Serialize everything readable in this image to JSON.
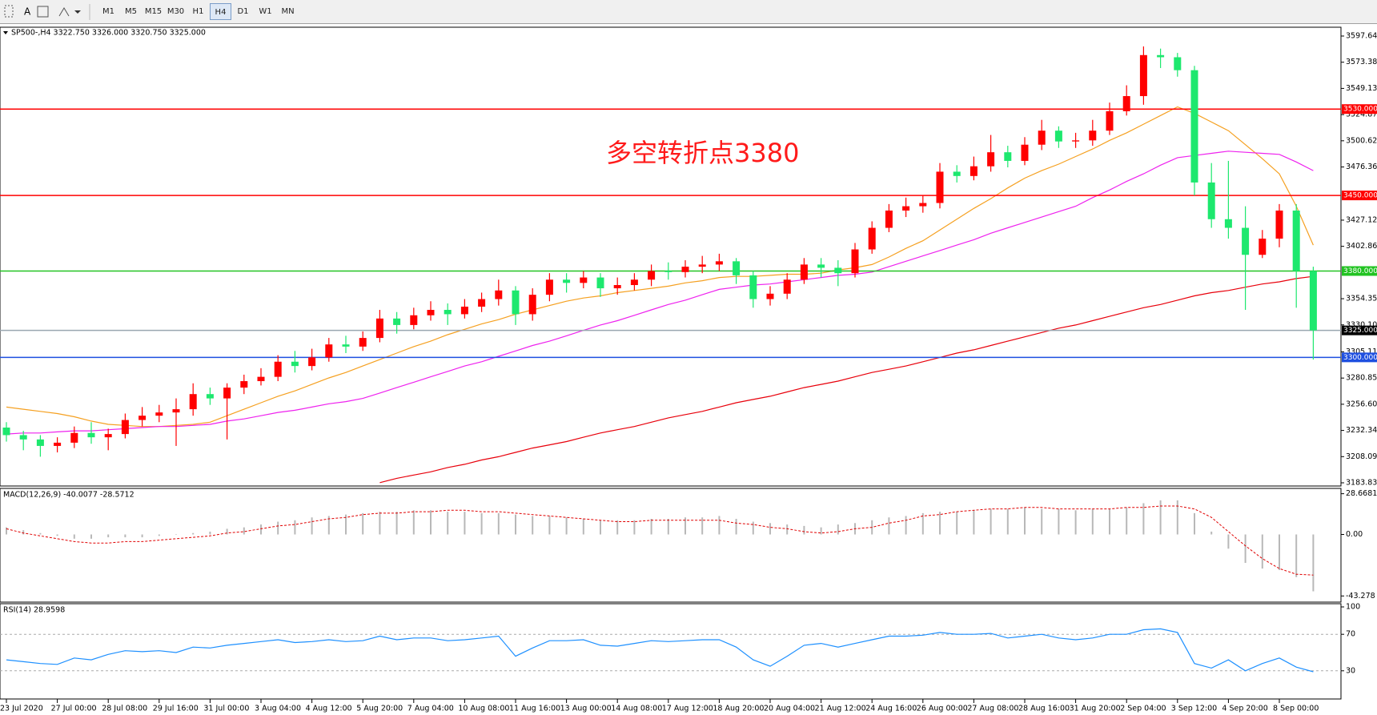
{
  "toolbar": {
    "font_tool": "A",
    "timeframes": [
      "M1",
      "M5",
      "M15",
      "M30",
      "H1",
      "H4",
      "D1",
      "W1",
      "MN"
    ]
  },
  "chart_data": [
    {
      "type": "candlestick",
      "title": "SP500-,H4  3322.750 3326.000 3320.750 3325.000",
      "annotation": "多空转折点3380",
      "up_color": "#ff0000",
      "down_color": "#1de86e",
      "categories": [
        "23 Jul 2020",
        null,
        null,
        "27 Jul 00:00",
        null,
        null,
        "28 Jul 08:00",
        null,
        null,
        "29 Jul 16:00",
        null,
        null,
        "31 Jul 00:00",
        null,
        null,
        "3 Aug 04:00",
        null,
        null,
        "4 Aug 12:00",
        null,
        null,
        "5 Aug 20:00",
        null,
        null,
        "7 Aug 04:00",
        null,
        null,
        "10 Aug 08:00",
        null,
        null,
        "11 Aug 16:00",
        null,
        null,
        "13 Aug 00:00",
        null,
        null,
        "14 Aug 08:00",
        null,
        null,
        "17 Aug 12:00",
        null,
        null,
        "18 Aug 20:00",
        null,
        null,
        "20 Aug 04:00",
        null,
        null,
        "21 Aug 12:00",
        null,
        null,
        "24 Aug 16:00",
        null,
        null,
        "26 Aug 00:00",
        null,
        null,
        "27 Aug 08:00",
        null,
        null,
        "28 Aug 16:00",
        null,
        null,
        "31 Aug 20:00",
        null,
        null,
        "2 Sep 04:00",
        null,
        null,
        "3 Sep 12:00",
        null,
        null,
        "4 Sep 20:00",
        null,
        null,
        "8 Sep 00:00",
        null,
        null
      ],
      "open": [
        3235,
        3228,
        3224,
        3218,
        3221,
        3230,
        3226,
        3229,
        3242,
        3246,
        3249,
        3252,
        3266,
        3262,
        3272,
        3278,
        3282,
        3296,
        3292,
        3300,
        3312,
        3310,
        3318,
        3336,
        3330,
        3339,
        3344,
        3340,
        3347,
        3354,
        3362,
        3340,
        3358,
        3372,
        3369,
        3374,
        3364,
        3367,
        3372,
        3380,
        3379,
        3384,
        3386,
        3389,
        3376,
        3354,
        3359,
        3372,
        3386,
        3383,
        3378,
        3400,
        3420,
        3436,
        3440,
        3443,
        3472,
        3468,
        3477,
        3490,
        3482,
        3497,
        3510,
        3500,
        3501,
        3510,
        3528,
        3542,
        3580,
        3578,
        3566,
        3462,
        3428,
        3420,
        3395,
        3410,
        3436,
        3380
      ],
      "high": [
        3240,
        3232,
        3228,
        3226,
        3236,
        3240,
        3234,
        3248,
        3254,
        3256,
        3262,
        3276,
        3272,
        3276,
        3284,
        3290,
        3302,
        3306,
        3308,
        3318,
        3320,
        3324,
        3344,
        3342,
        3346,
        3352,
        3350,
        3354,
        3360,
        3372,
        3366,
        3364,
        3378,
        3378,
        3380,
        3378,
        3374,
        3378,
        3386,
        3388,
        3390,
        3394,
        3396,
        3392,
        3380,
        3366,
        3378,
        3392,
        3392,
        3390,
        3406,
        3426,
        3442,
        3448,
        3450,
        3480,
        3478,
        3486,
        3506,
        3496,
        3504,
        3520,
        3514,
        3508,
        3520,
        3536,
        3552,
        3588,
        3586,
        3582,
        3570,
        3480,
        3482,
        3440,
        3418,
        3442,
        3442,
        3384
      ],
      "low": [
        3222,
        3214,
        3208,
        3212,
        3216,
        3220,
        3214,
        3225,
        3236,
        3240,
        3218,
        3246,
        3256,
        3224,
        3266,
        3274,
        3278,
        3286,
        3288,
        3296,
        3304,
        3306,
        3314,
        3322,
        3326,
        3334,
        3330,
        3336,
        3342,
        3348,
        3330,
        3334,
        3352,
        3360,
        3364,
        3356,
        3358,
        3362,
        3366,
        3372,
        3374,
        3378,
        3380,
        3368,
        3346,
        3348,
        3354,
        3368,
        3374,
        3366,
        3374,
        3396,
        3416,
        3430,
        3434,
        3438,
        3462,
        3464,
        3472,
        3476,
        3478,
        3492,
        3494,
        3494,
        3496,
        3506,
        3524,
        3534,
        3568,
        3560,
        3450,
        3420,
        3410,
        3344,
        3392,
        3402,
        3346,
        3298
      ],
      "close": [
        3228,
        3224,
        3218,
        3221,
        3230,
        3226,
        3229,
        3242,
        3246,
        3249,
        3252,
        3266,
        3262,
        3272,
        3278,
        3282,
        3296,
        3292,
        3300,
        3312,
        3310,
        3318,
        3336,
        3330,
        3339,
        3344,
        3340,
        3347,
        3354,
        3362,
        3340,
        3358,
        3372,
        3369,
        3374,
        3364,
        3367,
        3372,
        3380,
        3379,
        3384,
        3386,
        3389,
        3376,
        3354,
        3359,
        3372,
        3386,
        3383,
        3378,
        3400,
        3420,
        3436,
        3440,
        3443,
        3472,
        3468,
        3477,
        3490,
        3482,
        3497,
        3510,
        3500,
        3501,
        3510,
        3528,
        3542,
        3580,
        3578,
        3566,
        3462,
        3428,
        3420,
        3395,
        3410,
        3436,
        3380,
        3325
      ],
      "overlays": [
        {
          "color": "#f5a020",
          "values": [
            3254,
            3252,
            3250,
            3248,
            3245,
            3241,
            3238,
            3237,
            3236,
            3236,
            3237,
            3238,
            3240,
            3246,
            3252,
            3258,
            3264,
            3269,
            3275,
            3281,
            3286,
            3292,
            3298,
            3304,
            3310,
            3315,
            3321,
            3326,
            3331,
            3335,
            3340,
            3344,
            3348,
            3352,
            3355,
            3357,
            3360,
            3362,
            3364,
            3366,
            3369,
            3371,
            3374,
            3375,
            3375,
            3376,
            3377,
            3377,
            3378,
            3381,
            3383,
            3386,
            3393,
            3401,
            3408,
            3418,
            3428,
            3438,
            3447,
            3457,
            3466,
            3473,
            3479,
            3486,
            3493,
            3501,
            3508,
            3516,
            3524,
            3532,
            3526,
            3518,
            3510,
            3497,
            3484,
            3470,
            3440,
            3404
          ]
        },
        {
          "color": "#ee22ee",
          "values": [
            3229,
            3230,
            3230,
            3231,
            3232,
            3232,
            3233,
            3234,
            3235,
            3236,
            3236,
            3237,
            3238,
            3241,
            3243,
            3246,
            3249,
            3251,
            3254,
            3257,
            3259,
            3262,
            3267,
            3272,
            3277,
            3282,
            3287,
            3292,
            3296,
            3301,
            3306,
            3311,
            3315,
            3320,
            3325,
            3330,
            3334,
            3339,
            3344,
            3349,
            3353,
            3358,
            3363,
            3365,
            3367,
            3368,
            3370,
            3372,
            3374,
            3376,
            3377,
            3379,
            3384,
            3389,
            3394,
            3399,
            3404,
            3409,
            3415,
            3420,
            3425,
            3430,
            3435,
            3440,
            3448,
            3455,
            3463,
            3470,
            3478,
            3485,
            3487,
            3489,
            3491,
            3490,
            3489,
            3488,
            3481,
            3473
          ]
        },
        {
          "color": "#e8000b",
          "values": [
            null,
            null,
            null,
            null,
            null,
            null,
            null,
            null,
            null,
            null,
            null,
            null,
            null,
            null,
            null,
            null,
            null,
            null,
            null,
            null,
            null,
            null,
            3184,
            3188,
            3191,
            3194,
            3198,
            3201,
            3205,
            3208,
            3212,
            3216,
            3219,
            3222,
            3226,
            3230,
            3233,
            3236,
            3240,
            3244,
            3247,
            3250,
            3254,
            3258,
            3261,
            3264,
            3268,
            3272,
            3275,
            3278,
            3282,
            3286,
            3289,
            3292,
            3296,
            3300,
            3304,
            3307,
            3311,
            3315,
            3319,
            3323,
            3327,
            3330,
            3334,
            3338,
            3342,
            3346,
            3349,
            3353,
            3357,
            3360,
            3362,
            3365,
            3368,
            3370,
            3373,
            3375
          ]
        }
      ],
      "levels": [
        {
          "value": 3530,
          "label": "3530.000",
          "color": "#ff0000"
        },
        {
          "value": 3450,
          "label": "3450.000",
          "color": "#ff0000"
        },
        {
          "value": 3380,
          "label": "3380.000",
          "color": "#22c322"
        },
        {
          "value": 3325,
          "label": "3325.000",
          "color": "#9aa6b0"
        },
        {
          "value": 3300,
          "label": "3300.000",
          "color": "#1e4fe0"
        }
      ],
      "ylim": [
        3180.87,
        3605.8
      ],
      "yticks": [
        {
          "value": 3597.64,
          "label": "3597.640"
        },
        {
          "value": 3573.385,
          "label": "3573.385"
        },
        {
          "value": 3549.13,
          "label": "3549.130"
        },
        {
          "value": 3524.875,
          "label": "3524.875"
        },
        {
          "value": 3500.62,
          "label": "3500.620"
        },
        {
          "value": 3476.365,
          "label": "3476.365"
        },
        {
          "value": 3427.12,
          "label": "3427.120"
        },
        {
          "value": 3402.865,
          "label": "3402.865"
        },
        {
          "value": 3354.355,
          "label": "3354.355"
        },
        {
          "value": 3330.1,
          "label": "3330.100"
        },
        {
          "value": 3305.11,
          "label": "3305.110"
        },
        {
          "value": 3280.855,
          "label": "3280.855"
        },
        {
          "value": 3256.6,
          "label": "3256.600"
        },
        {
          "value": 3232.345,
          "label": "3232.345"
        },
        {
          "value": 3208.09,
          "label": "3208.090"
        },
        {
          "value": 3183.835,
          "label": "3183.835"
        }
      ]
    },
    {
      "type": "macd",
      "title": "MACD(12,26,9) -40.0077 -28.5712",
      "histogram_color": "#b8b8b8",
      "signal_color": "#e00000",
      "histogram": [
        5,
        3,
        1,
        -1,
        -3,
        -3,
        -2,
        -2,
        -2,
        -1,
        0,
        1,
        2,
        4,
        5,
        7,
        9,
        10,
        12,
        13,
        14,
        15,
        16,
        16,
        17,
        17,
        16,
        16,
        15,
        15,
        14,
        13,
        13,
        12,
        11,
        10,
        10,
        10,
        11,
        11,
        12,
        12,
        13,
        11,
        9,
        8,
        7,
        6,
        5,
        7,
        8,
        10,
        12,
        13,
        15,
        16,
        16,
        17,
        18,
        18,
        19,
        18,
        18,
        17,
        18,
        18,
        19,
        22,
        24,
        24,
        15,
        2,
        -10,
        -20,
        -24,
        -25,
        -30,
        -40.0077
      ],
      "signal": [
        4,
        1,
        -1,
        -3,
        -5,
        -6,
        -6,
        -5,
        -5,
        -4,
        -3,
        -2,
        -1,
        1,
        2,
        4,
        6,
        7,
        9,
        11,
        12,
        14,
        15,
        15,
        16,
        16,
        17,
        17,
        16,
        16,
        15,
        14,
        13,
        12,
        11,
        10,
        9,
        9,
        10,
        10,
        10,
        10,
        10,
        8,
        7,
        5,
        4,
        2,
        1,
        2,
        4,
        5,
        8,
        10,
        13,
        14,
        16,
        17,
        18,
        18,
        19,
        19,
        18,
        18,
        18,
        18,
        19,
        19,
        20,
        20,
        18,
        12,
        2,
        -8,
        -17,
        -24,
        -28,
        -28.5712
      ],
      "ylim": [
        -47.6,
        32.4
      ],
      "yticks": [
        28.6681,
        {
          "value": 0,
          "label": "0.00"
        },
        -43.278
      ]
    },
    {
      "type": "line",
      "title": "RSI(14) 28.9598",
      "color": "#1e90ff",
      "values": [
        42,
        40,
        38,
        37,
        44,
        42,
        48,
        52,
        51,
        52,
        50,
        56,
        55,
        58,
        60,
        62,
        64,
        61,
        62,
        64,
        62,
        63,
        68,
        64,
        66,
        66,
        63,
        64,
        66,
        68,
        46,
        55,
        63,
        63,
        64,
        58,
        57,
        60,
        63,
        62,
        63,
        64,
        64,
        56,
        42,
        35,
        46,
        58,
        60,
        56,
        60,
        64,
        68,
        68,
        69,
        72,
        70,
        70,
        71,
        66,
        68,
        70,
        66,
        64,
        66,
        70,
        70,
        75,
        76,
        72,
        38,
        33,
        42,
        30,
        38,
        44,
        34,
        28.9598
      ],
      "ylim": [
        0,
        100
      ],
      "yticks": [
        100,
        70,
        30
      ],
      "levels": [
        70,
        30
      ]
    }
  ]
}
